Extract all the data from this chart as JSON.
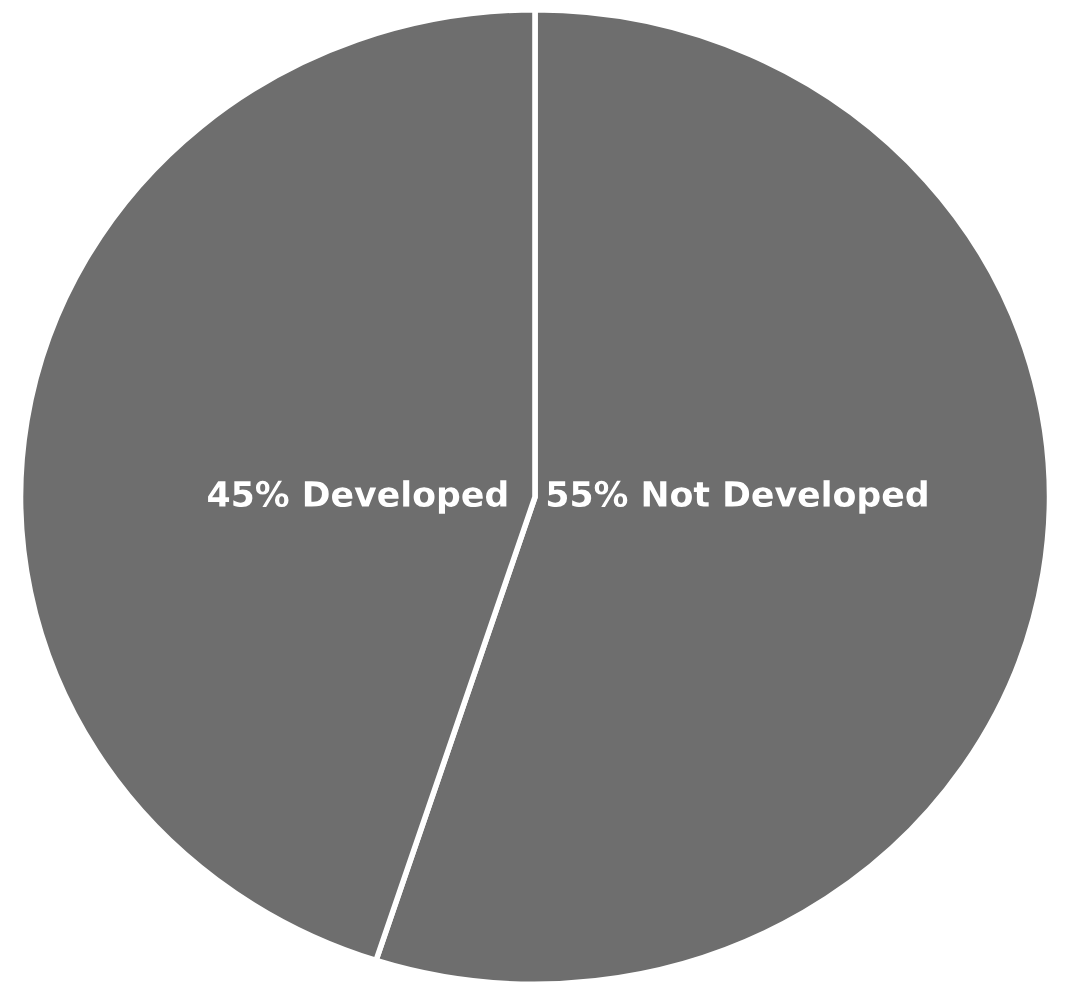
{
  "chart_data": {
    "type": "pie",
    "categories": [
      "55% Not Developed",
      "45% Developed"
    ],
    "values": [
      55,
      45
    ],
    "colors": [
      "#6e6e6e",
      "#6e6e6e"
    ]
  }
}
